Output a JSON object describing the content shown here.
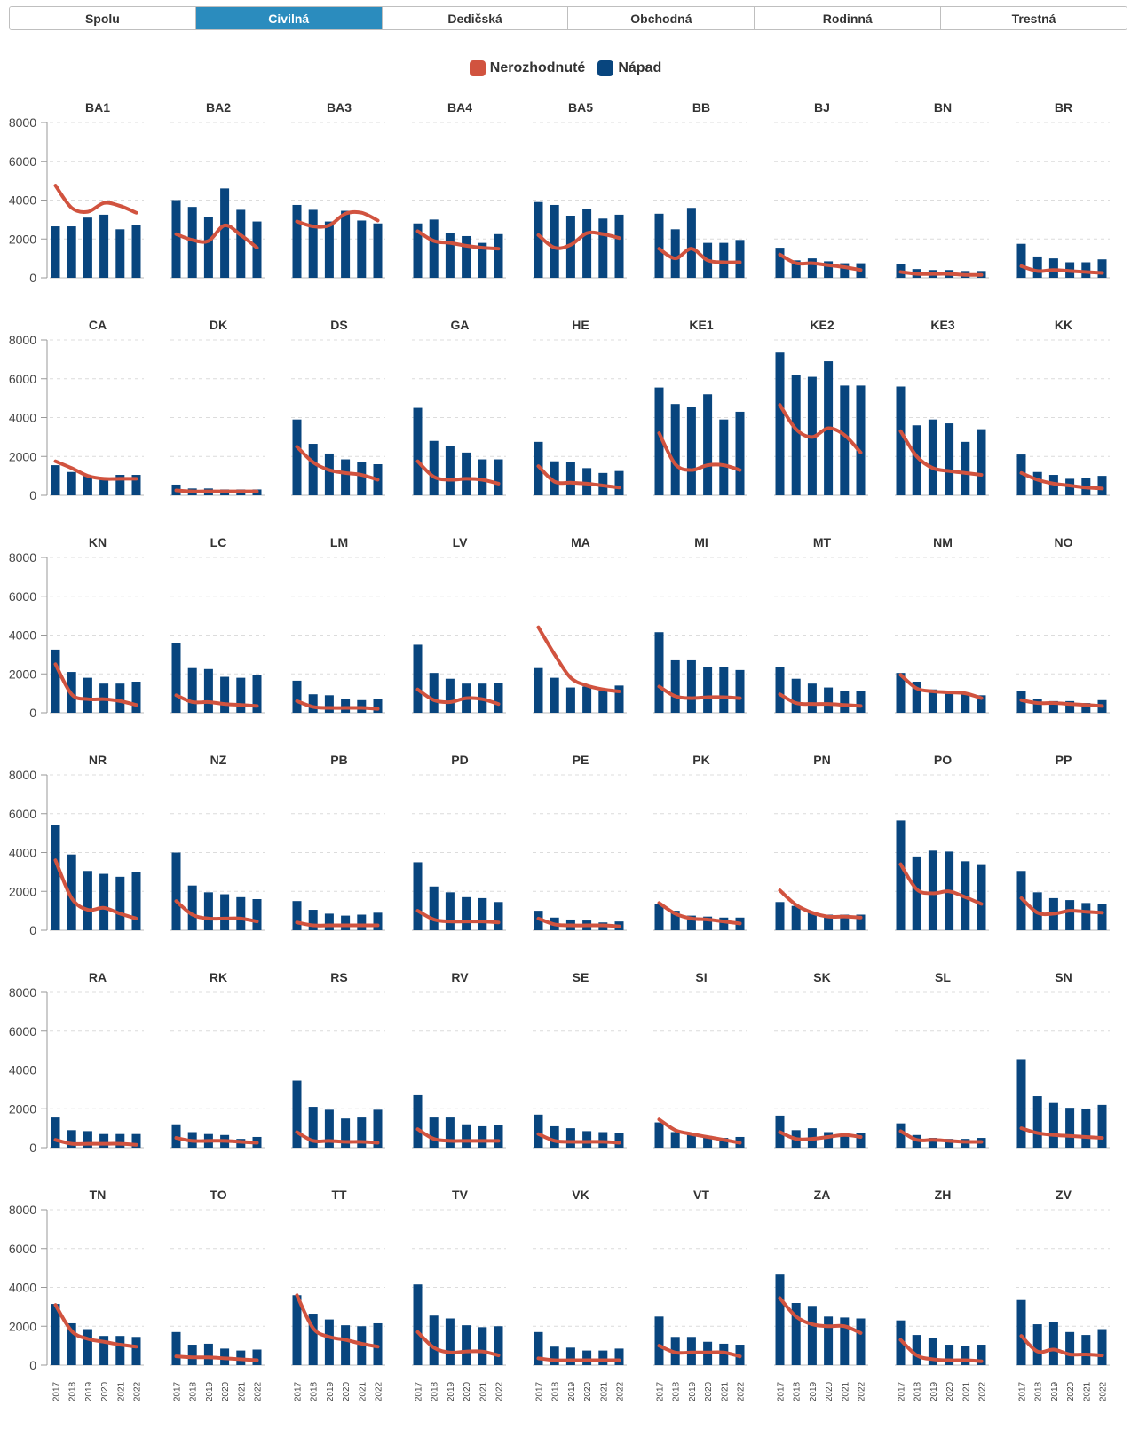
{
  "tabs": [
    {
      "label": "Spolu",
      "active": false
    },
    {
      "label": "Civilná",
      "active": true
    },
    {
      "label": "Dedičská",
      "active": false
    },
    {
      "label": "Obchodná",
      "active": false
    },
    {
      "label": "Rodinná",
      "active": false
    },
    {
      "label": "Trestná",
      "active": false
    }
  ],
  "colors": {
    "line": "#d1533f",
    "bar": "#08457e",
    "active_tab": "#2b8cbe"
  },
  "legend": [
    {
      "label": "Nerozhodnuté",
      "color": "#d1533f"
    },
    {
      "label": "Nápad",
      "color": "#08457e"
    }
  ],
  "chart_data": {
    "type": "bar",
    "categories": [
      "2017",
      "2018",
      "2019",
      "2020",
      "2021",
      "2022"
    ],
    "y_ticks": [
      "0",
      "2000",
      "4000",
      "6000",
      "8000"
    ],
    "ylim": [
      0,
      8000
    ],
    "legend_position": "top-center",
    "grid": true,
    "panels": [
      {
        "name": "BA1",
        "napad": [
          2650,
          2650,
          3100,
          3250,
          2500,
          2700
        ],
        "nerozhodnute": [
          4750,
          3600,
          3400,
          3850,
          3700,
          3350
        ]
      },
      {
        "name": "BA2",
        "napad": [
          4000,
          3650,
          3150,
          4600,
          3500,
          2900
        ],
        "nerozhodnute": [
          2250,
          1950,
          1900,
          2700,
          2200,
          1550
        ]
      },
      {
        "name": "BA3",
        "napad": [
          3750,
          3500,
          2900,
          3450,
          2950,
          2800
        ],
        "nerozhodnute": [
          2900,
          2650,
          2700,
          3300,
          3350,
          2950
        ]
      },
      {
        "name": "BA4",
        "napad": [
          2800,
          3000,
          2300,
          2150,
          1800,
          2250
        ],
        "nerozhodnute": [
          2400,
          1900,
          1800,
          1650,
          1550,
          1500
        ]
      },
      {
        "name": "BA5",
        "napad": [
          3900,
          3750,
          3200,
          3550,
          3050,
          3250
        ],
        "nerozhodnute": [
          2200,
          1550,
          1700,
          2300,
          2250,
          2050
        ]
      },
      {
        "name": "BB",
        "napad": [
          3300,
          2500,
          3600,
          1800,
          1800,
          1950
        ],
        "nerozhodnute": [
          1500,
          1000,
          1500,
          900,
          800,
          800
        ]
      },
      {
        "name": "BJ",
        "napad": [
          1550,
          900,
          1000,
          850,
          750,
          750
        ],
        "nerozhodnute": [
          1200,
          750,
          750,
          650,
          550,
          400
        ]
      },
      {
        "name": "BN",
        "napad": [
          700,
          450,
          400,
          400,
          350,
          350
        ],
        "nerozhodnute": [
          300,
          200,
          200,
          200,
          150,
          150
        ]
      },
      {
        "name": "BR",
        "napad": [
          1750,
          1100,
          1000,
          800,
          800,
          950
        ],
        "nerozhodnute": [
          600,
          350,
          400,
          350,
          300,
          250
        ]
      },
      {
        "name": "CA",
        "napad": [
          1550,
          1200,
          1000,
          900,
          1050,
          1050
        ],
        "nerozhodnute": [
          1750,
          1400,
          1000,
          850,
          850,
          850
        ]
      },
      {
        "name": "DK",
        "napad": [
          550,
          350,
          350,
          300,
          300,
          300
        ],
        "nerozhodnute": [
          250,
          200,
          200,
          200,
          200,
          200
        ]
      },
      {
        "name": "DS",
        "napad": [
          3900,
          2650,
          2150,
          1850,
          1700,
          1600
        ],
        "nerozhodnute": [
          2500,
          1700,
          1300,
          1150,
          1050,
          800
        ]
      },
      {
        "name": "GA",
        "napad": [
          4500,
          2800,
          2550,
          2200,
          1850,
          1850
        ],
        "nerozhodnute": [
          1750,
          950,
          800,
          850,
          800,
          600
        ]
      },
      {
        "name": "HE",
        "napad": [
          2750,
          1750,
          1700,
          1400,
          1150,
          1250
        ],
        "nerozhodnute": [
          1500,
          700,
          650,
          600,
          500,
          400
        ]
      },
      {
        "name": "KE1",
        "napad": [
          5550,
          4700,
          4550,
          5200,
          3900,
          4300
        ],
        "nerozhodnute": [
          3200,
          1600,
          1300,
          1550,
          1550,
          1300
        ]
      },
      {
        "name": "KE2",
        "napad": [
          7350,
          6200,
          6100,
          6900,
          5650,
          5650
        ],
        "nerozhodnute": [
          4650,
          3400,
          3000,
          3450,
          3100,
          2200
        ]
      },
      {
        "name": "KE3",
        "napad": [
          5600,
          3600,
          3900,
          3700,
          2750,
          3400
        ],
        "nerozhodnute": [
          3300,
          2000,
          1400,
          1250,
          1150,
          1050
        ]
      },
      {
        "name": "KK",
        "napad": [
          2100,
          1200,
          1050,
          850,
          900,
          1000
        ],
        "nerozhodnute": [
          1150,
          800,
          600,
          500,
          400,
          350
        ]
      },
      {
        "name": "KN",
        "napad": [
          3250,
          2100,
          1800,
          1500,
          1500,
          1600
        ],
        "nerozhodnute": [
          2500,
          950,
          700,
          700,
          600,
          400
        ]
      },
      {
        "name": "LC",
        "napad": [
          3600,
          2300,
          2250,
          1850,
          1800,
          1950
        ],
        "nerozhodnute": [
          900,
          550,
          550,
          450,
          400,
          350
        ]
      },
      {
        "name": "LM",
        "napad": [
          1650,
          950,
          900,
          700,
          650,
          700
        ],
        "nerozhodnute": [
          600,
          300,
          250,
          250,
          250,
          200
        ]
      },
      {
        "name": "LV",
        "napad": [
          3500,
          2050,
          1750,
          1500,
          1500,
          1550
        ],
        "nerozhodnute": [
          1200,
          650,
          550,
          750,
          700,
          450
        ]
      },
      {
        "name": "MA",
        "napad": [
          2300,
          1800,
          1300,
          1350,
          1150,
          1400
        ],
        "nerozhodnute": [
          4400,
          3000,
          1800,
          1400,
          1200,
          1100
        ]
      },
      {
        "name": "MI",
        "napad": [
          4150,
          2700,
          2700,
          2350,
          2350,
          2200
        ],
        "nerozhodnute": [
          1350,
          850,
          750,
          800,
          800,
          750
        ]
      },
      {
        "name": "MT",
        "napad": [
          2350,
          1750,
          1500,
          1300,
          1100,
          1100
        ],
        "nerozhodnute": [
          950,
          500,
          450,
          450,
          400,
          350
        ]
      },
      {
        "name": "NM",
        "napad": [
          2050,
          1600,
          1200,
          1100,
          1050,
          900
        ],
        "nerozhodnute": [
          1950,
          1250,
          1100,
          1050,
          1000,
          750
        ]
      },
      {
        "name": "NO",
        "napad": [
          1100,
          700,
          600,
          600,
          500,
          650
        ],
        "nerozhodnute": [
          650,
          500,
          500,
          450,
          400,
          350
        ]
      },
      {
        "name": "NR",
        "napad": [
          5400,
          3900,
          3050,
          2900,
          2750,
          3000
        ],
        "nerozhodnute": [
          3600,
          1650,
          1050,
          1150,
          850,
          600
        ]
      },
      {
        "name": "NZ",
        "napad": [
          4000,
          2300,
          1950,
          1850,
          1700,
          1600
        ],
        "nerozhodnute": [
          1500,
          800,
          600,
          600,
          600,
          450
        ]
      },
      {
        "name": "PB",
        "napad": [
          1500,
          1050,
          850,
          750,
          800,
          900
        ],
        "nerozhodnute": [
          400,
          250,
          250,
          250,
          250,
          250
        ]
      },
      {
        "name": "PD",
        "napad": [
          3500,
          2250,
          1950,
          1700,
          1650,
          1450
        ],
        "nerozhodnute": [
          1000,
          550,
          450,
          450,
          450,
          400
        ]
      },
      {
        "name": "PE",
        "napad": [
          1000,
          650,
          550,
          500,
          400,
          450
        ],
        "nerozhodnute": [
          600,
          300,
          250,
          250,
          250,
          200
        ]
      },
      {
        "name": "PK",
        "napad": [
          1350,
          1000,
          750,
          700,
          650,
          650
        ],
        "nerozhodnute": [
          1400,
          850,
          600,
          550,
          450,
          350
        ]
      },
      {
        "name": "PN",
        "napad": [
          1450,
          1250,
          900,
          800,
          800,
          800
        ],
        "nerozhodnute": [
          2050,
          1300,
          900,
          700,
          700,
          650
        ]
      },
      {
        "name": "PO",
        "napad": [
          5650,
          3800,
          4100,
          4050,
          3550,
          3400
        ],
        "nerozhodnute": [
          3400,
          2100,
          1900,
          2000,
          1700,
          1350
        ]
      },
      {
        "name": "PP",
        "napad": [
          3050,
          1950,
          1650,
          1550,
          1400,
          1350
        ],
        "nerozhodnute": [
          1650,
          900,
          850,
          1000,
          950,
          900
        ]
      },
      {
        "name": "RA",
        "napad": [
          1550,
          900,
          850,
          700,
          700,
          700
        ],
        "nerozhodnute": [
          400,
          200,
          200,
          200,
          200,
          150
        ]
      },
      {
        "name": "RK",
        "napad": [
          1200,
          800,
          700,
          650,
          450,
          550
        ],
        "nerozhodnute": [
          500,
          350,
          350,
          350,
          300,
          250
        ]
      },
      {
        "name": "RS",
        "napad": [
          3450,
          2100,
          1950,
          1500,
          1550,
          1950
        ],
        "nerozhodnute": [
          800,
          350,
          350,
          300,
          300,
          250
        ]
      },
      {
        "name": "RV",
        "napad": [
          2700,
          1550,
          1550,
          1200,
          1100,
          1150
        ],
        "nerozhodnute": [
          950,
          450,
          350,
          350,
          350,
          350
        ]
      },
      {
        "name": "SE",
        "napad": [
          1700,
          1100,
          1000,
          850,
          800,
          750
        ],
        "nerozhodnute": [
          700,
          350,
          300,
          300,
          300,
          250
        ]
      },
      {
        "name": "SI",
        "napad": [
          1300,
          800,
          700,
          600,
          500,
          550
        ],
        "nerozhodnute": [
          1450,
          900,
          700,
          550,
          400,
          250
        ]
      },
      {
        "name": "SK",
        "napad": [
          1650,
          900,
          1000,
          800,
          700,
          750
        ],
        "nerozhodnute": [
          800,
          450,
          450,
          550,
          650,
          550
        ]
      },
      {
        "name": "SL",
        "napad": [
          1250,
          650,
          500,
          450,
          450,
          500
        ],
        "nerozhodnute": [
          850,
          400,
          400,
          350,
          300,
          300
        ]
      },
      {
        "name": "SN",
        "napad": [
          4550,
          2650,
          2300,
          2050,
          2000,
          2200
        ],
        "nerozhodnute": [
          1000,
          750,
          650,
          600,
          550,
          500
        ]
      },
      {
        "name": "TN",
        "napad": [
          3150,
          2150,
          1850,
          1500,
          1500,
          1450
        ],
        "nerozhodnute": [
          3100,
          1750,
          1350,
          1200,
          1050,
          950
        ]
      },
      {
        "name": "TO",
        "napad": [
          1700,
          1050,
          1100,
          850,
          750,
          800
        ],
        "nerozhodnute": [
          450,
          400,
          400,
          350,
          300,
          250
        ]
      },
      {
        "name": "TT",
        "napad": [
          3600,
          2650,
          2350,
          2050,
          2000,
          2150
        ],
        "nerozhodnute": [
          3600,
          1900,
          1450,
          1300,
          1100,
          950
        ]
      },
      {
        "name": "TV",
        "napad": [
          4150,
          2550,
          2400,
          2050,
          1950,
          2000
        ],
        "nerozhodnute": [
          1700,
          900,
          650,
          700,
          700,
          500
        ]
      },
      {
        "name": "VK",
        "napad": [
          1700,
          950,
          900,
          750,
          750,
          850
        ],
        "nerozhodnute": [
          350,
          250,
          250,
          250,
          250,
          250
        ]
      },
      {
        "name": "VT",
        "napad": [
          2500,
          1450,
          1450,
          1200,
          1100,
          1050
        ],
        "nerozhodnute": [
          1000,
          650,
          650,
          650,
          650,
          450
        ]
      },
      {
        "name": "ZA",
        "napad": [
          4700,
          3200,
          3050,
          2500,
          2450,
          2400
        ],
        "nerozhodnute": [
          3450,
          2500,
          2100,
          2000,
          2000,
          1650
        ]
      },
      {
        "name": "ZH",
        "napad": [
          2300,
          1550,
          1400,
          1050,
          1000,
          1050
        ],
        "nerozhodnute": [
          1300,
          500,
          300,
          250,
          250,
          200
        ]
      },
      {
        "name": "ZV",
        "napad": [
          3350,
          2100,
          2200,
          1700,
          1550,
          1850
        ],
        "nerozhodnute": [
          1500,
          700,
          800,
          550,
          550,
          500
        ]
      }
    ]
  }
}
